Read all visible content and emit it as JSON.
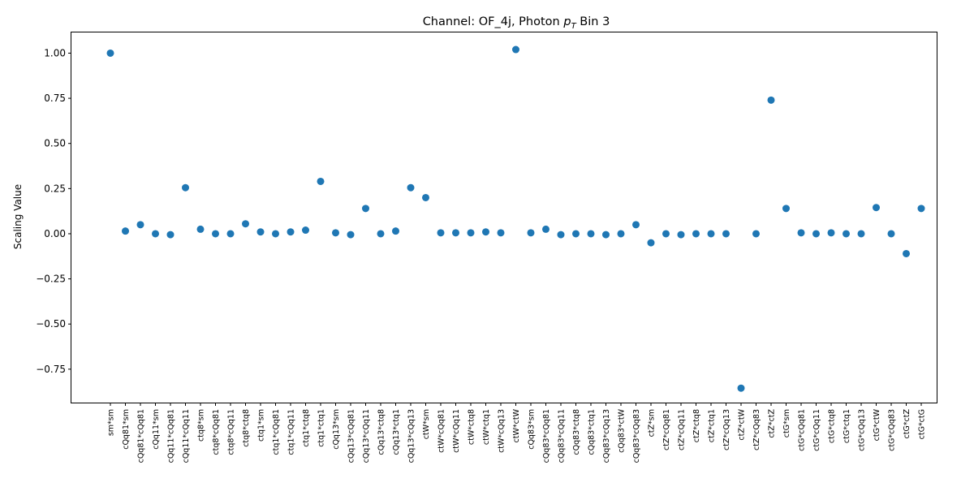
{
  "chart_data": {
    "type": "scatter",
    "title_prefix": "Channel: OF_4j, Photon ",
    "title_math_main": "p",
    "title_math_sub": "T",
    "title_suffix": " Bin 3",
    "xlabel": "",
    "ylabel": "Scaling Value",
    "ylim": [
      -0.935,
      1.1145
    ],
    "yticks": [
      1.0,
      0.75,
      0.5,
      0.25,
      0.0,
      -0.25,
      -0.5,
      -0.75
    ],
    "ytick_labels": [
      "1.00",
      "0.75",
      "0.50",
      "0.25",
      "0.00",
      "−0.25",
      "−0.50",
      "−0.75"
    ],
    "grid": false,
    "legend": false,
    "marker_color": "#1f77b4",
    "categories": [
      "sm*sm",
      "cQq81*sm",
      "cQq81*cQq81",
      "cQq11*sm",
      "cQq11*cQq81",
      "cQq11*cQq11",
      "ctq8*sm",
      "ctq8*cQq81",
      "ctq8*cQq11",
      "ctq8*ctq8",
      "ctq1*sm",
      "ctq1*cQq81",
      "ctq1*cQq11",
      "ctq1*ctq8",
      "ctq1*ctq1",
      "cQq13*sm",
      "cQq13*cQq81",
      "cQq13*cQq11",
      "cQq13*ctq8",
      "cQq13*ctq1",
      "cQq13*cQq13",
      "ctW*sm",
      "ctW*cQq81",
      "ctW*cQq11",
      "ctW*ctq8",
      "ctW*ctq1",
      "ctW*cQq13",
      "ctW*ctW",
      "cQq83*sm",
      "cQq83*cQq81",
      "cQq83*cQq11",
      "cQq83*ctq8",
      "cQq83*ctq1",
      "cQq83*cQq13",
      "cQq83*ctW",
      "cQq83*cQq83",
      "ctZ*sm",
      "ctZ*cQq81",
      "ctZ*cQq11",
      "ctZ*ctq8",
      "ctZ*ctq1",
      "ctZ*cQq13",
      "ctZ*ctW",
      "ctZ*cQq83",
      "ctZ*ctZ",
      "ctG*sm",
      "ctG*cQq81",
      "ctG*cQq11",
      "ctG*ctq8",
      "ctG*ctq1",
      "ctG*cQq13",
      "ctG*ctW",
      "ctG*cQq83",
      "ctG*ctZ",
      "ctG*ctG"
    ],
    "values": [
      1.0,
      0.015,
      0.05,
      0.0,
      -0.005,
      0.255,
      0.025,
      0.0,
      0.0,
      0.055,
      0.01,
      0.0,
      0.01,
      0.02,
      0.29,
      0.005,
      -0.005,
      0.14,
      0.0,
      0.015,
      0.255,
      0.2,
      0.005,
      0.005,
      0.005,
      0.01,
      0.005,
      1.02,
      0.005,
      0.025,
      -0.005,
      0.0,
      0.0,
      -0.005,
      0.0,
      0.05,
      -0.05,
      0.0,
      -0.005,
      0.0,
      0.0,
      0.0,
      -0.855,
      0.0,
      0.74,
      0.14,
      0.005,
      0.0,
      0.005,
      0.0,
      0.0,
      0.145,
      0.0,
      -0.11,
      0.14
    ]
  }
}
